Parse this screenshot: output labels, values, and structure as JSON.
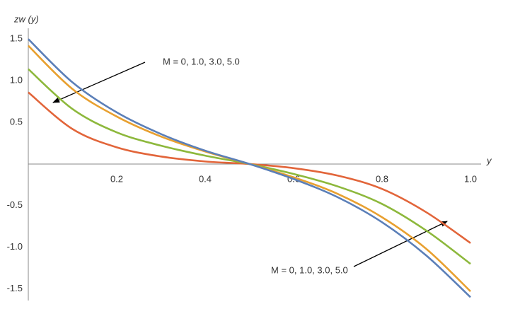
{
  "chart_data": {
    "type": "line",
    "y_label": "zw (y)",
    "x_label": "y",
    "x": [
      0,
      0.1,
      0.2,
      0.3,
      0.4,
      0.5,
      0.6,
      0.7,
      0.8,
      0.9,
      1.0
    ],
    "series": [
      {
        "color": "#5b7fb8",
        "values": [
          1.5,
          0.98,
          0.62,
          0.36,
          0.16,
          0,
          -0.18,
          -0.4,
          -0.7,
          -1.1,
          -1.6
        ]
      },
      {
        "color": "#e8a030",
        "values": [
          1.42,
          0.9,
          0.57,
          0.33,
          0.15,
          0,
          -0.16,
          -0.36,
          -0.64,
          -1.02,
          -1.53
        ]
      },
      {
        "color": "#8db83c",
        "values": [
          1.14,
          0.66,
          0.38,
          0.22,
          0.1,
          0,
          -0.12,
          -0.27,
          -0.48,
          -0.8,
          -1.2
        ]
      },
      {
        "color": "#e2653a",
        "values": [
          0.86,
          0.42,
          0.2,
          0.09,
          0.03,
          0,
          -0.05,
          -0.14,
          -0.3,
          -0.58,
          -0.95
        ]
      }
    ],
    "xlim": [
      0,
      1.0
    ],
    "ylim": [
      -1.64,
      1.63
    ],
    "xticks": [
      0.2,
      0.4,
      0.6,
      0.8,
      {
        "value": 1,
        "label": "1.0"
      }
    ],
    "yticks": [
      1.5,
      {
        "value": 1,
        "label": "1.0"
      },
      0.5,
      -0.5,
      {
        "value": -1,
        "label": "-1.0"
      },
      -1.5
    ],
    "grid": false,
    "annotations": [
      "M = 0, 1.0, 3.0, 5.0",
      "M = 0, 1.0, 3.0, 5.0"
    ]
  }
}
